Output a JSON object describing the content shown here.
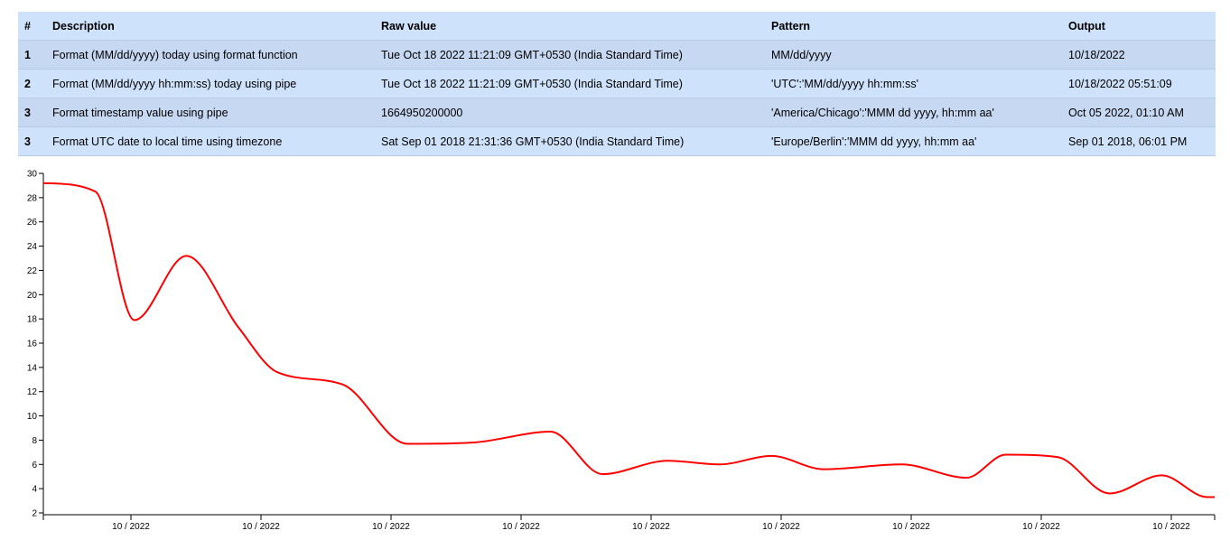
{
  "table": {
    "headers": [
      "#",
      "Description",
      "Raw value",
      "Pattern",
      "Output"
    ],
    "rows": [
      [
        "1",
        "Format (MM/dd/yyyy) today using format function",
        "Tue Oct 18 2022 11:21:09 GMT+0530 (India Standard Time)",
        "MM/dd/yyyy",
        "10/18/2022"
      ],
      [
        "2",
        "Format (MM/dd/yyyy hh:mm:ss) today using pipe",
        "Tue Oct 18 2022 11:21:09 GMT+0530 (India Standard Time)",
        "'UTC':'MM/dd/yyyy hh:mm:ss'",
        "10/18/2022 05:51:09"
      ],
      [
        "3",
        "Format timestamp value using pipe",
        "1664950200000",
        "'America/Chicago':'MMM dd yyyy, hh:mm aa'",
        "Oct 05 2022, 01:10 AM"
      ],
      [
        "3",
        "Format UTC date to local time using timezone",
        "Sat Sep 01 2018 21:31:36 GMT+0530 (India Standard Time)",
        "'Europe/Berlin':'MMM dd yyyy, hh:mm aa'",
        "Sep 01 2018, 06:01 PM"
      ]
    ]
  },
  "colors": {
    "header_bg": "#cfe2fb",
    "row_odd_bg": "#c6d8f2",
    "row_even_bg": "#cfe2fb",
    "line": "#ff0000"
  },
  "chart_data": {
    "type": "line",
    "title": "",
    "xlabel": "",
    "ylabel": "",
    "ylim": [
      2,
      30
    ],
    "yticks": [
      "2",
      "4",
      "6",
      "8",
      "10",
      "12",
      "14",
      "16",
      "18",
      "20",
      "22",
      "24",
      "26",
      "28",
      "30"
    ],
    "xticks": [
      "10 / 2022",
      "10 / 2022",
      "10 / 2022",
      "10 / 2022",
      "10 / 2022",
      "10 / 2022",
      "10 / 2022",
      "10 / 2022",
      "10 / 2022"
    ],
    "grid": false,
    "legend": "none",
    "curve": "smooth",
    "x": [
      0,
      0.4,
      0.7,
      1.1,
      1.5,
      1.8,
      2.3,
      2.8,
      3.3,
      3.9,
      4.3,
      4.8,
      5.2,
      5.6,
      6.0,
      6.6,
      7.1,
      7.4,
      7.8,
      8.2,
      8.6,
      8.95
    ],
    "values": [
      29.2,
      28.5,
      17.9,
      23.2,
      17.3,
      13.6,
      12.6,
      7.7,
      7.8,
      8.7,
      5.2,
      6.3,
      6.0,
      6.7,
      5.6,
      6.0,
      4.9,
      6.8,
      6.6,
      3.6,
      5.1,
      3.3
    ]
  }
}
